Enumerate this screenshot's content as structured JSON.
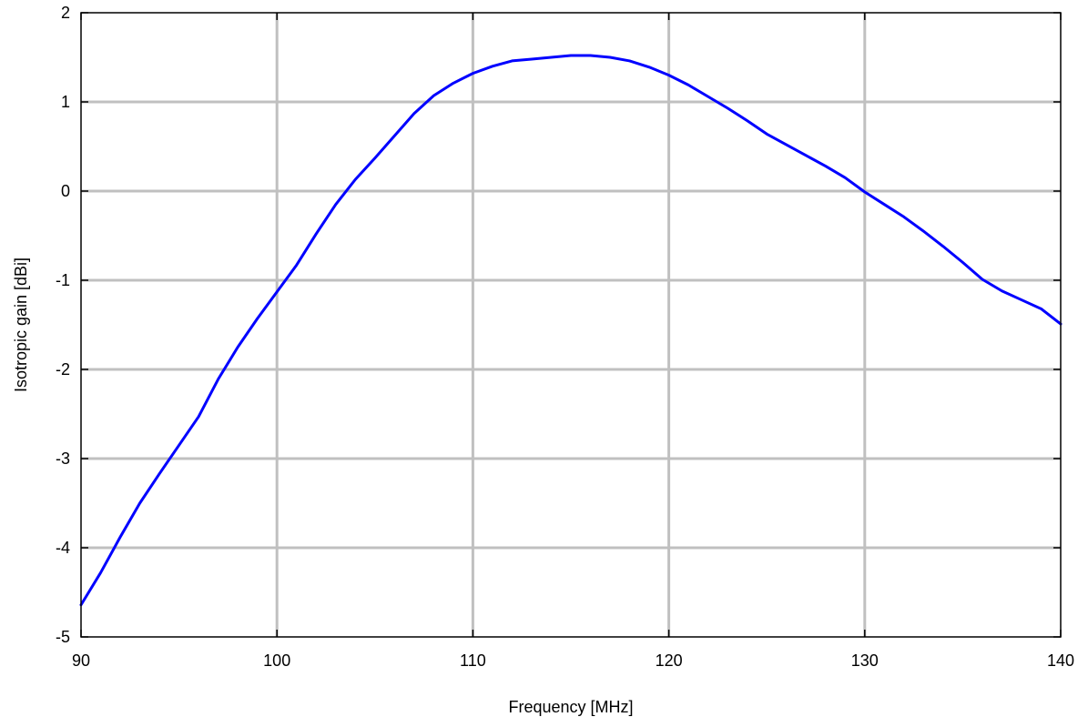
{
  "chart_data": {
    "type": "line",
    "title": "",
    "xlabel": "Frequency [MHz]",
    "ylabel": "Isotropic gain [dBi]",
    "xlim": [
      90,
      140
    ],
    "ylim": [
      -5,
      2
    ],
    "xticks": [
      90,
      100,
      110,
      120,
      130,
      140
    ],
    "yticks": [
      -5,
      -4,
      -3,
      -2,
      -1,
      0,
      1,
      2
    ],
    "xtick_labels": [
      "90",
      "100",
      "110",
      "120",
      "130",
      "140"
    ],
    "ytick_labels": [
      "-5",
      "-4",
      "-3",
      "-2",
      "-1",
      "0",
      "1",
      "2"
    ],
    "grid": true,
    "series": [
      {
        "color": "#0000ff",
        "x": [
          90,
          91,
          92,
          93,
          94,
          95,
          96,
          97,
          98,
          99,
          100,
          101,
          102,
          103,
          104,
          105,
          106,
          107,
          108,
          109,
          110,
          111,
          112,
          113,
          114,
          115,
          116,
          117,
          118,
          119,
          120,
          121,
          122,
          123,
          124,
          125,
          126,
          127,
          128,
          129,
          130,
          131,
          132,
          133,
          134,
          135,
          136,
          137,
          138,
          139,
          140
        ],
        "y": [
          -4.64,
          -4.28,
          -3.88,
          -3.5,
          -3.17,
          -2.85,
          -2.53,
          -2.11,
          -1.75,
          -1.43,
          -1.13,
          -0.83,
          -0.48,
          -0.15,
          0.13,
          0.37,
          0.62,
          0.87,
          1.07,
          1.21,
          1.32,
          1.4,
          1.46,
          1.48,
          1.5,
          1.52,
          1.52,
          1.5,
          1.46,
          1.39,
          1.3,
          1.19,
          1.06,
          0.93,
          0.79,
          0.64,
          0.52,
          0.4,
          0.28,
          0.15,
          -0.01,
          -0.15,
          -0.29,
          -0.45,
          -0.62,
          -0.8,
          -0.99,
          -1.12,
          -1.22,
          -1.32,
          -1.49
        ]
      }
    ]
  }
}
